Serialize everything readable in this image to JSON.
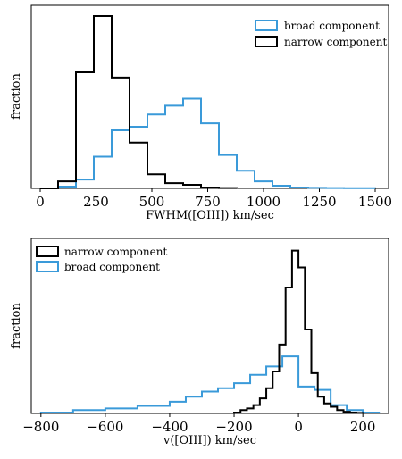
{
  "colors": {
    "broad": "#3a9ad9",
    "narrow": "#000000"
  },
  "chart_data": [
    {
      "type": "histogram-step",
      "xlabel": "FWHM([OIII]) km/sec",
      "ylabel": "fraction",
      "xlim": [
        -40,
        1560
      ],
      "ylim": [
        0,
        1.0
      ],
      "xticks": [
        0,
        250,
        500,
        750,
        1000,
        1250,
        1500
      ],
      "xtick_labels": [
        "0",
        "250",
        "500",
        "750",
        "1000",
        "1250",
        "1500"
      ],
      "legend": {
        "placement": "top-right",
        "order": [
          "broad",
          "narrow"
        ]
      },
      "series": [
        {
          "key": "broad",
          "name": "broad component",
          "bin_width": 80,
          "edges": [
            0,
            80,
            160,
            240,
            320,
            400,
            480,
            560,
            640,
            720,
            800,
            880,
            960,
            1040,
            1120,
            1200,
            1280,
            1360,
            1440,
            1500
          ],
          "values": [
            0,
            0.01,
            0.05,
            0.18,
            0.33,
            0.35,
            0.42,
            0.47,
            0.51,
            0.37,
            0.19,
            0.1,
            0.04,
            0.015,
            0.005,
            0.003,
            0.002,
            0.001,
            0.001
          ]
        },
        {
          "key": "narrow",
          "name": "narrow component",
          "edges": [
            0,
            80,
            160,
            240,
            320,
            400,
            480,
            560,
            640,
            720,
            800,
            880
          ],
          "values": [
            0,
            0.04,
            0.66,
            0.98,
            0.63,
            0.26,
            0.08,
            0.03,
            0.02,
            0.005,
            0.002
          ]
        }
      ]
    },
    {
      "type": "histogram-step",
      "xlabel": "v([OIII]) km/sec",
      "ylabel": "fraction",
      "xlim": [
        -830,
        280
      ],
      "ylim": [
        0,
        1.0
      ],
      "xticks": [
        -800,
        -600,
        -400,
        -200,
        0,
        200
      ],
      "xtick_labels": [
        "−800",
        "−600",
        "−400",
        "−200",
        "0",
        "200"
      ],
      "legend": {
        "placement": "top-left",
        "order": [
          "narrow",
          "broad"
        ]
      },
      "series": [
        {
          "key": "narrow",
          "name": "narrow component",
          "edges": [
            -200,
            -180,
            -160,
            -140,
            -120,
            -100,
            -80,
            -60,
            -40,
            -20,
            0,
            20,
            40,
            60,
            80,
            100,
            120,
            140,
            160,
            180,
            200
          ],
          "values": [
            0.005,
            0.02,
            0.03,
            0.05,
            0.09,
            0.15,
            0.25,
            0.41,
            0.75,
            0.97,
            0.87,
            0.5,
            0.24,
            0.1,
            0.06,
            0.04,
            0.02,
            0.01,
            0.005,
            0.003
          ]
        },
        {
          "key": "broad",
          "name": "broad component",
          "edges": [
            -800,
            -700,
            -600,
            -500,
            -400,
            -350,
            -300,
            -250,
            -200,
            -150,
            -100,
            -50,
            0,
            50,
            100,
            150,
            200,
            250
          ],
          "values": [
            0.005,
            0.02,
            0.03,
            0.045,
            0.07,
            0.1,
            0.13,
            0.15,
            0.18,
            0.23,
            0.28,
            0.34,
            0.16,
            0.14,
            0.05,
            0.02,
            0.005
          ]
        }
      ]
    }
  ]
}
